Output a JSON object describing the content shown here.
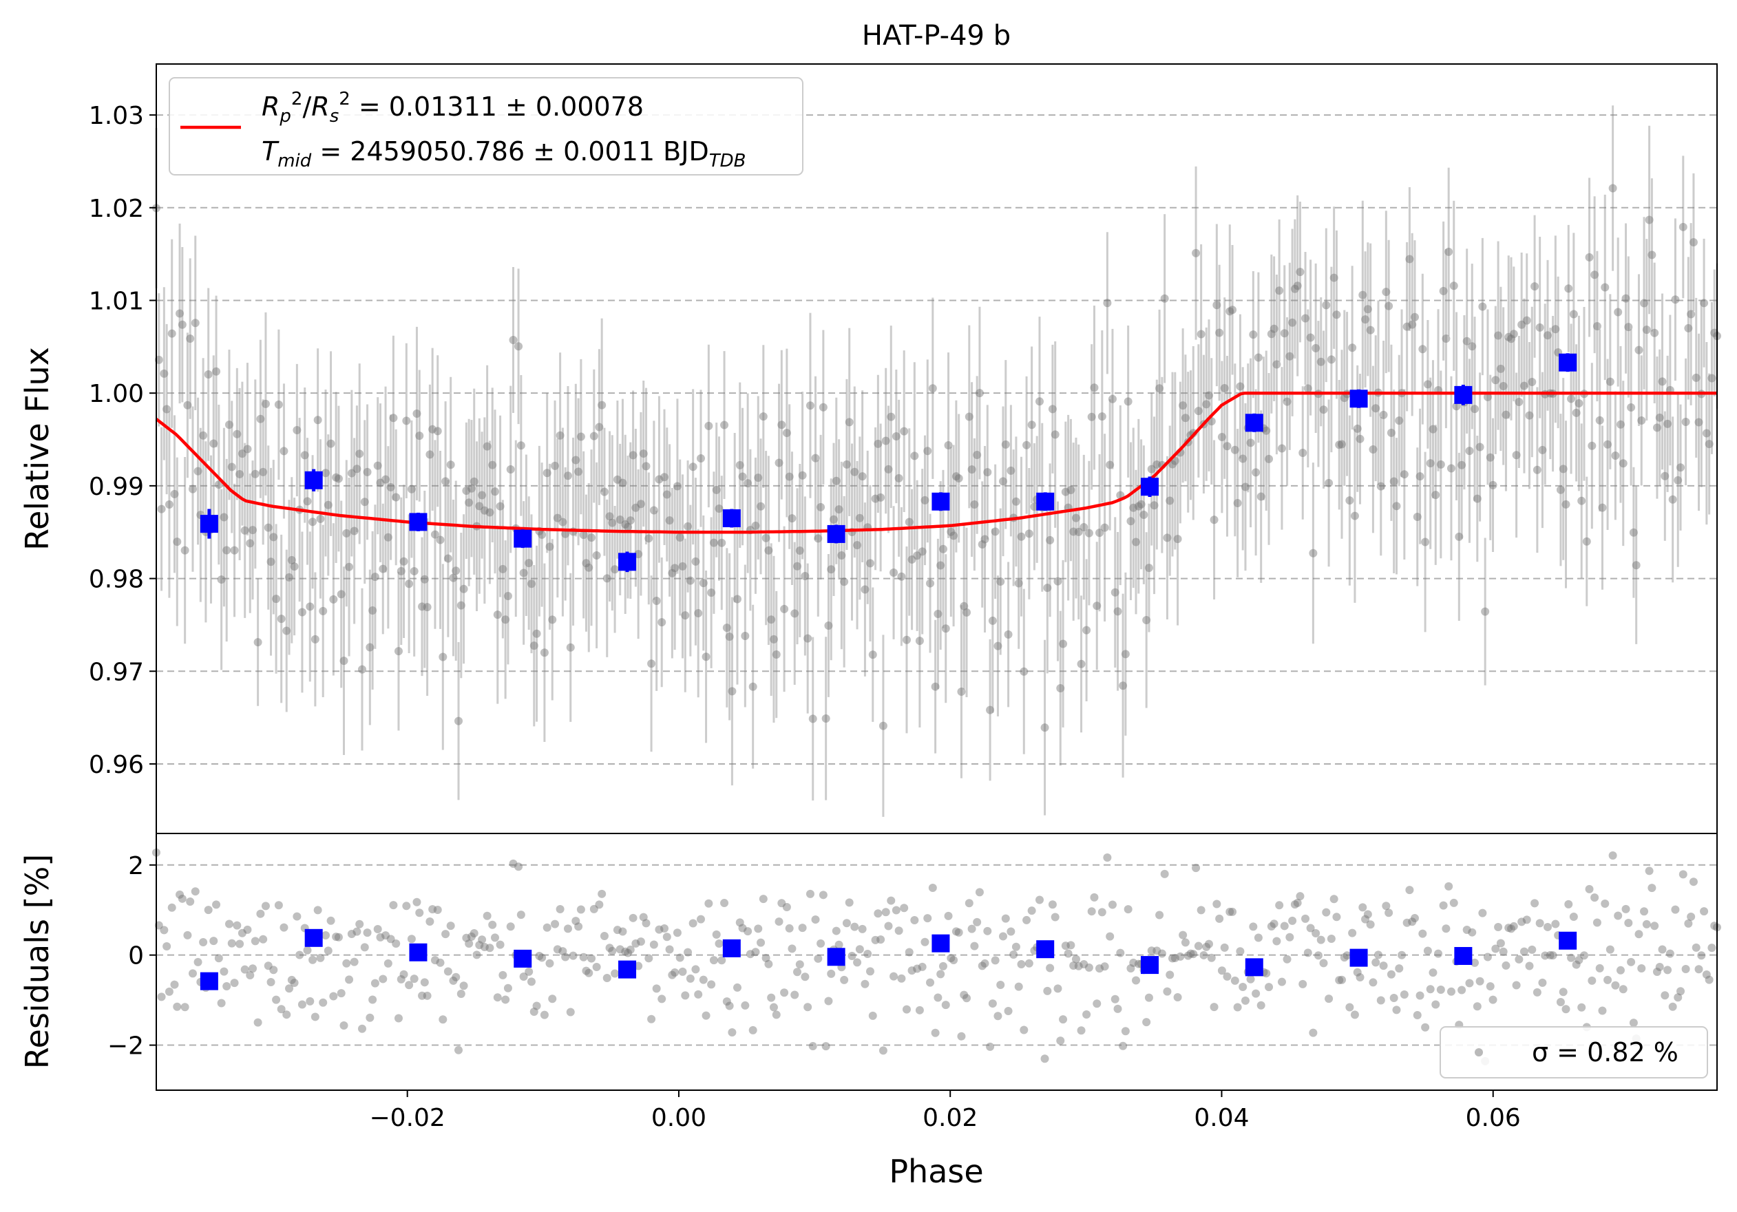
{
  "chart_data": [
    {
      "type": "scatter",
      "panel": "top",
      "title": "HAT-P-49 b",
      "xlabel": "",
      "ylabel": "Relative Flux",
      "xlim": [
        -0.0385,
        0.0765
      ],
      "ylim": [
        0.9525,
        1.0355
      ],
      "yticks": [
        0.96,
        0.97,
        0.98,
        0.99,
        1.0,
        1.01,
        1.02,
        1.03
      ],
      "ytick_labels": [
        "0.96",
        "0.97",
        "0.98",
        "0.99",
        "1.00",
        "1.01",
        "1.02",
        "1.03"
      ],
      "grid": "horizontal dashed",
      "legend_placement": "top-left",
      "legend": {
        "line1": "R_p^2/R_s^2 = 0.01311 ± 0.00078",
        "line2": "T_mid = 2459050.786 ± 0.0011 BJD_TDB"
      },
      "model_curve": {
        "name": "transit model",
        "color": "#ff0000",
        "x": [
          -0.0385,
          -0.037,
          -0.035,
          -0.033,
          -0.032,
          -0.03,
          -0.025,
          -0.02,
          -0.015,
          -0.01,
          -0.005,
          0.0,
          0.005,
          0.01,
          0.015,
          0.02,
          0.025,
          0.03,
          0.032,
          0.033,
          0.035,
          0.037,
          0.039,
          0.04,
          0.0415,
          0.045,
          0.05,
          0.06,
          0.07,
          0.0765
        ],
        "y": [
          0.9972,
          0.9955,
          0.9925,
          0.9895,
          0.9884,
          0.9878,
          0.9868,
          0.9861,
          0.9856,
          0.9853,
          0.9851,
          0.985,
          0.985,
          0.9851,
          0.9853,
          0.9857,
          0.9865,
          0.9876,
          0.9882,
          0.9888,
          0.991,
          0.994,
          0.9972,
          0.9987,
          1.0,
          1.0,
          1.0,
          1.0,
          1.0,
          1.0
        ]
      },
      "binned": {
        "color": "#0000ff",
        "x": [
          -0.0346,
          -0.0269,
          -0.0192,
          -0.0115,
          -0.0038,
          0.0039,
          0.0116,
          0.0193,
          0.027,
          0.0347,
          0.0424,
          0.0501,
          0.0578,
          0.0655
        ],
        "y": [
          0.9859,
          0.9906,
          0.9861,
          0.9843,
          0.9818,
          0.9865,
          0.9848,
          0.9883,
          0.9883,
          0.9899,
          0.9968,
          0.9994,
          0.9998,
          1.0033
        ],
        "err": [
          0.0016,
          0.0012,
          0.001,
          0.001,
          0.0011,
          0.001,
          0.001,
          0.001,
          0.001,
          0.0011,
          0.001,
          0.001,
          0.0011,
          0.001
        ]
      },
      "raw_points": {
        "color": "#808080",
        "note_count": 600,
        "typical_error": 0.0085,
        "scatter_sigma": 0.0082,
        "x_range": [
          -0.0385,
          0.0765
        ]
      }
    },
    {
      "type": "scatter",
      "panel": "bottom",
      "xlabel": "Phase",
      "ylabel": "Residuals [%]",
      "xlim": [
        -0.0385,
        0.0765
      ],
      "ylim": [
        -3.0,
        2.7
      ],
      "xticks": [
        -0.02,
        0.0,
        0.02,
        0.04,
        0.06
      ],
      "xtick_labels": [
        "−0.02",
        "0.00",
        "0.02",
        "0.04",
        "0.06"
      ],
      "yticks": [
        -2,
        0,
        2
      ],
      "ytick_labels": [
        "−2",
        "0",
        "2"
      ],
      "grid": "horizontal dashed",
      "legend_placement": "bottom-right",
      "legend": {
        "label": "σ = 0.82 %"
      },
      "binned_residuals": {
        "color": "#0000ff",
        "x": [
          -0.0346,
          -0.0269,
          -0.0192,
          -0.0115,
          -0.0038,
          0.0039,
          0.0116,
          0.0193,
          0.027,
          0.0347,
          0.0424,
          0.0501,
          0.0578,
          0.0655
        ],
        "y": [
          -0.58,
          0.38,
          0.06,
          -0.08,
          -0.32,
          0.15,
          -0.04,
          0.26,
          0.13,
          -0.22,
          -0.27,
          -0.06,
          -0.02,
          0.32
        ]
      }
    }
  ]
}
